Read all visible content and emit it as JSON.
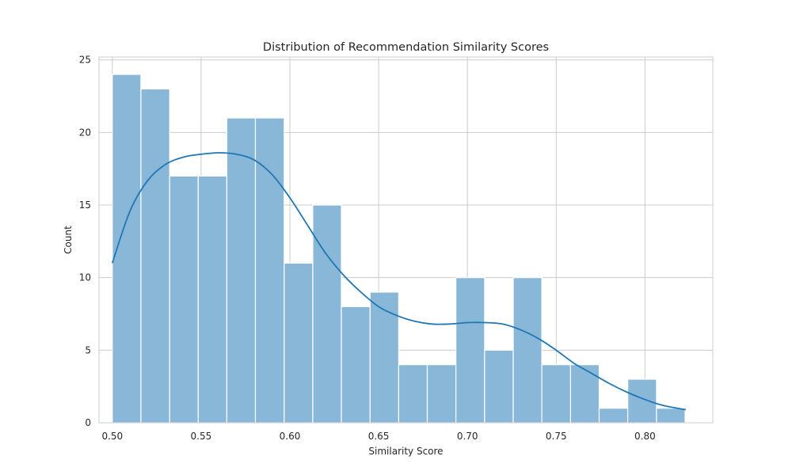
{
  "chart_data": {
    "type": "bar",
    "subtype": "histogram-with-kde",
    "title": "Distribution of Recommendation Similarity Scores",
    "xlabel": "Similarity Score",
    "ylabel": "Count",
    "xlim": [
      0.4925,
      0.8382
    ],
    "ylim": [
      0,
      25.2
    ],
    "x_ticks": [
      "0.50",
      "0.55",
      "0.60",
      "0.65",
      "0.70",
      "0.75",
      "0.80"
    ],
    "y_ticks": [
      "0",
      "5",
      "10",
      "15",
      "20",
      "25"
    ],
    "grid": true,
    "bin_width": 0.01612,
    "bins": [
      {
        "start": 0.5,
        "end": 0.5161,
        "count": 24
      },
      {
        "start": 0.5161,
        "end": 0.5323,
        "count": 23
      },
      {
        "start": 0.5323,
        "end": 0.5484,
        "count": 17
      },
      {
        "start": 0.5484,
        "end": 0.5645,
        "count": 17
      },
      {
        "start": 0.5645,
        "end": 0.5806,
        "count": 21
      },
      {
        "start": 0.5806,
        "end": 0.5968,
        "count": 21
      },
      {
        "start": 0.5968,
        "end": 0.6129,
        "count": 11
      },
      {
        "start": 0.6129,
        "end": 0.629,
        "count": 15
      },
      {
        "start": 0.629,
        "end": 0.6452,
        "count": 8
      },
      {
        "start": 0.6452,
        "end": 0.6613,
        "count": 9
      },
      {
        "start": 0.6613,
        "end": 0.6774,
        "count": 4
      },
      {
        "start": 0.6774,
        "end": 0.6935,
        "count": 4
      },
      {
        "start": 0.6935,
        "end": 0.7097,
        "count": 10
      },
      {
        "start": 0.7097,
        "end": 0.7258,
        "count": 5
      },
      {
        "start": 0.7258,
        "end": 0.7419,
        "count": 10
      },
      {
        "start": 0.7419,
        "end": 0.7581,
        "count": 4
      },
      {
        "start": 0.7581,
        "end": 0.7742,
        "count": 4
      },
      {
        "start": 0.7742,
        "end": 0.7903,
        "count": 1
      },
      {
        "start": 0.7903,
        "end": 0.8065,
        "count": 3
      },
      {
        "start": 0.8065,
        "end": 0.8226,
        "count": 1
      }
    ],
    "kde": {
      "x": [
        0.5,
        0.51,
        0.52,
        0.53,
        0.54,
        0.55,
        0.56,
        0.57,
        0.58,
        0.59,
        0.6,
        0.61,
        0.62,
        0.63,
        0.64,
        0.65,
        0.66,
        0.67,
        0.68,
        0.69,
        0.7,
        0.71,
        0.72,
        0.73,
        0.74,
        0.75,
        0.76,
        0.77,
        0.78,
        0.79,
        0.8,
        0.81,
        0.823
      ],
      "y": [
        11.0,
        14.6,
        16.7,
        17.8,
        18.3,
        18.5,
        18.6,
        18.5,
        18.1,
        17.1,
        15.5,
        13.6,
        11.7,
        10.2,
        9.0,
        8.0,
        7.4,
        7.0,
        6.8,
        6.8,
        6.9,
        6.9,
        6.8,
        6.4,
        5.8,
        5.0,
        4.1,
        3.4,
        2.7,
        2.1,
        1.6,
        1.2,
        0.9
      ]
    },
    "colors": {
      "bar_fill": "#89b7d8",
      "bar_edge": "#ffffff",
      "kde_line": "#1f77b4",
      "grid": "#cccccc",
      "frame": "#cccccc"
    }
  }
}
